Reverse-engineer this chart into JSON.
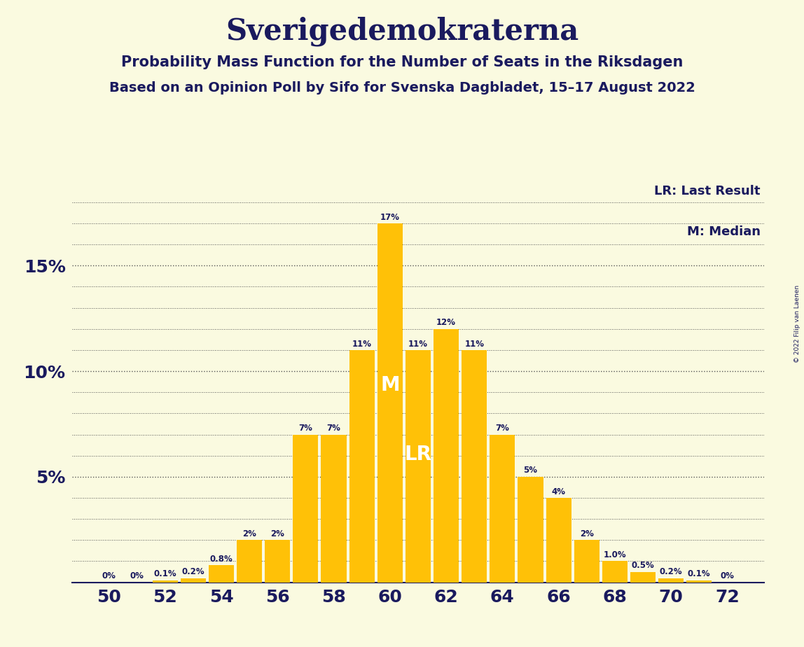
{
  "title": "Sverigedemokraterna",
  "subtitle1": "Probability Mass Function for the Number of Seats in the Riksdagen",
  "subtitle2": "Based on an Opinion Poll by Sifo for Svenska Dagbladet, 15–17 August 2022",
  "copyright": "© 2022 Filip van Laenen",
  "seats": [
    50,
    51,
    52,
    53,
    54,
    55,
    56,
    57,
    58,
    59,
    60,
    61,
    62,
    63,
    64,
    65,
    66,
    67,
    68,
    69,
    70,
    71,
    72
  ],
  "probabilities": [
    0.0,
    0.0,
    0.001,
    0.002,
    0.008,
    0.02,
    0.02,
    0.07,
    0.07,
    0.11,
    0.17,
    0.11,
    0.12,
    0.11,
    0.07,
    0.05,
    0.04,
    0.02,
    0.01,
    0.005,
    0.002,
    0.001,
    0.0
  ],
  "bar_labels": [
    "0%",
    "0%",
    "0.1%",
    "0.2%",
    "0.8%",
    "2%",
    "2%",
    "7%",
    "7%",
    "11%",
    "17%",
    "11%",
    "12%",
    "11%",
    "7%",
    "5%",
    "4%",
    "2%",
    "1.0%",
    "0.5%",
    "0.2%",
    "0.1%",
    "0%"
  ],
  "bar_color": "#FFC107",
  "background_color": "#FAFAE0",
  "text_color": "#1a1a5e",
  "median_seat": 60,
  "last_result_seat": 61,
  "ylim": [
    0,
    0.19
  ],
  "yticks": [
    0.05,
    0.1,
    0.15
  ],
  "ytick_labels": [
    "5%",
    "10%",
    "15%"
  ],
  "minor_yticks": [
    0.01,
    0.02,
    0.03,
    0.04,
    0.06,
    0.07,
    0.08,
    0.09,
    0.11,
    0.12,
    0.13,
    0.14,
    0.16,
    0.17,
    0.18
  ],
  "legend_lr": "LR: Last Result",
  "legend_m": "M: Median",
  "bar_width": 0.9
}
